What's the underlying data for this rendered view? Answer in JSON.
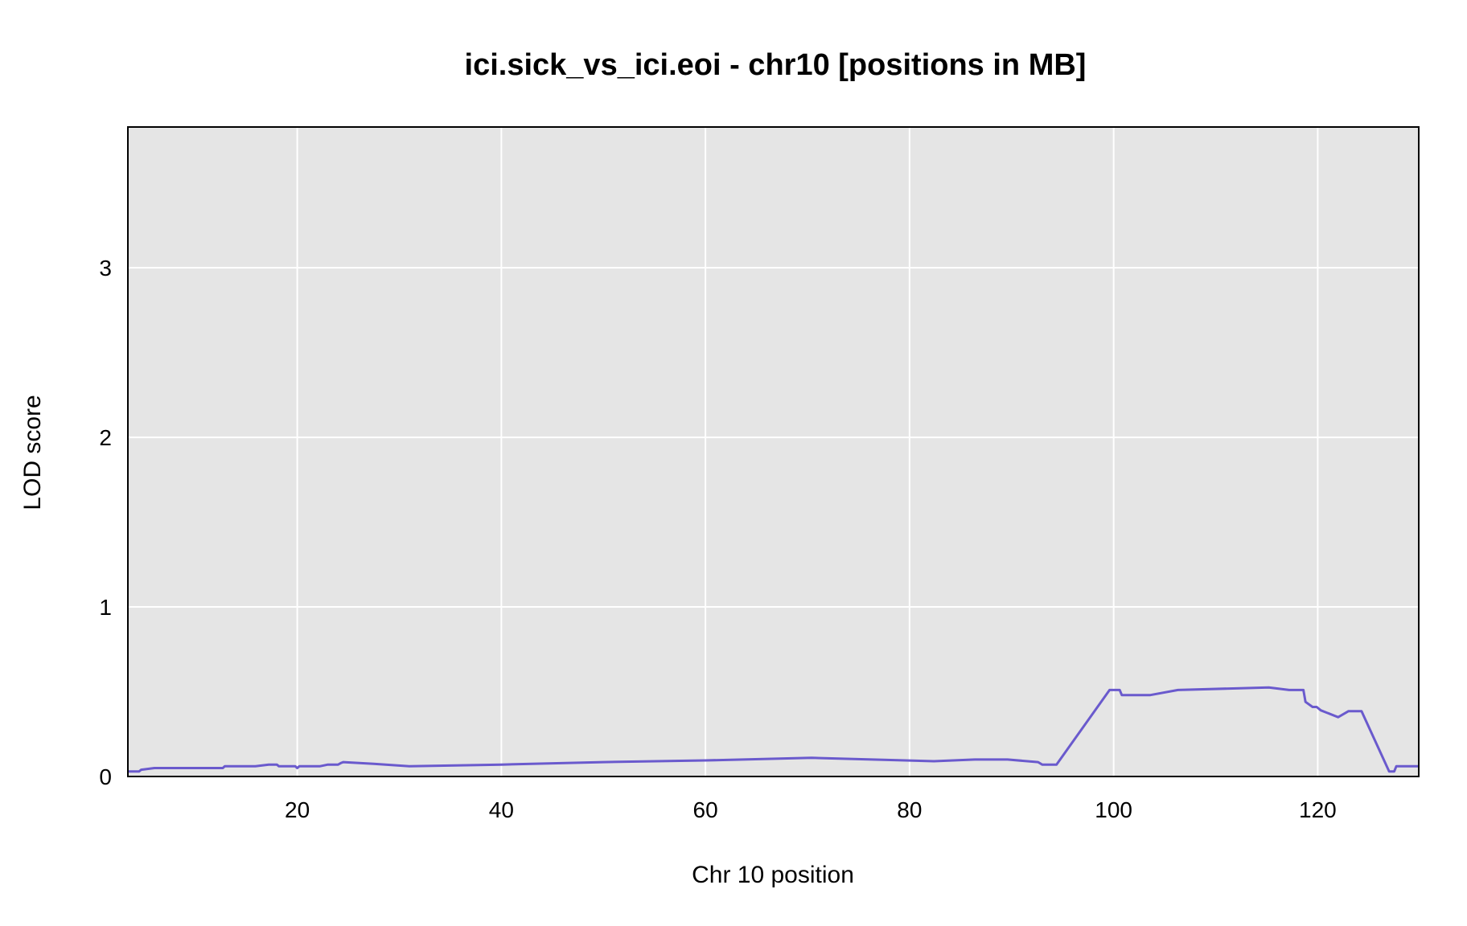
{
  "chart_data": {
    "type": "line",
    "title": "ici.sick_vs_ici.eoi - chr10 [positions in MB]",
    "xlabel": "Chr 10 position",
    "ylabel": "LOD score",
    "xlim": [
      3.4,
      129.9
    ],
    "ylim": [
      0,
      3.83
    ],
    "xticks": [
      20,
      40,
      60,
      80,
      100,
      120
    ],
    "yticks": [
      0,
      1,
      2,
      3
    ],
    "grid": true,
    "legend": "none",
    "colors": {
      "background": "#e5e5e5",
      "grid": "#ffffff",
      "line": "#6a5acd",
      "baseline": "#3a2fa0",
      "frame": "#000000"
    },
    "series": [
      {
        "x": [
          3.4,
          4.5,
          4.7,
          6.0,
          8.0,
          12.7,
          12.9,
          15.9,
          17.2,
          18.0,
          18.2,
          19.8,
          20.0,
          20.2,
          22.2,
          23.0,
          24.0,
          24.3,
          24.5,
          27.5,
          31.0,
          40.0,
          50.0,
          60.0,
          70.4,
          82.4,
          86.4,
          89.6,
          92.6,
          93.0,
          94.4,
          99.6,
          100.6,
          100.8,
          103.6,
          106.3,
          115.2,
          117.2,
          118.6,
          118.8,
          119.5,
          119.9,
          120.3,
          122.0,
          123.0,
          124.3,
          127.0,
          127.5,
          127.7,
          129.9
        ],
        "y": [
          0.03,
          0.03,
          0.04,
          0.05,
          0.05,
          0.05,
          0.06,
          0.06,
          0.07,
          0.07,
          0.06,
          0.06,
          0.05,
          0.06,
          0.06,
          0.07,
          0.07,
          0.08,
          0.085,
          0.075,
          0.06,
          0.07,
          0.085,
          0.095,
          0.11,
          0.09,
          0.1,
          0.1,
          0.085,
          0.07,
          0.07,
          0.51,
          0.51,
          0.48,
          0.48,
          0.51,
          0.525,
          0.51,
          0.51,
          0.44,
          0.41,
          0.41,
          0.39,
          0.35,
          0.385,
          0.385,
          0.03,
          0.03,
          0.06,
          0.06
        ]
      }
    ]
  }
}
